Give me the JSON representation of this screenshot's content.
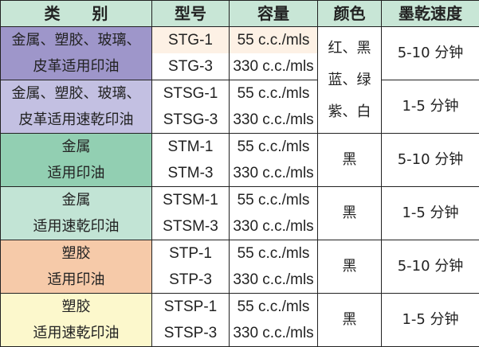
{
  "headers": [
    "类　　别",
    "型号",
    "容量",
    "颜色",
    "墨乾速度"
  ],
  "groups": [
    {
      "cat1": "金属、塑胶、玻璃、",
      "cat2": "皮革适用印油",
      "m1": "STG-1",
      "m2": "STG-3",
      "c1": "55 c.c./mls",
      "c2": "330 c.c./mls",
      "speed": "5-10 分钟",
      "bg": "#9e96ca"
    },
    {
      "cat1": "金属、塑胶、玻璃、",
      "cat2": "皮革适用速乾印油",
      "m1": "STSG-1",
      "m2": "STSG-3",
      "c1": "55 c.c./mls",
      "c2": "330 c.c./mls",
      "speed": "1-5 分钟",
      "bg": "#c3c0e2"
    },
    {
      "cat1": "金属",
      "cat2": "适用印油",
      "m1": "STM-1",
      "m2": "STM-3",
      "c1": "55 c.c./mls",
      "c2": "330 c.c./mls",
      "color": "黑",
      "speed": "5-10 分钟",
      "bg": "#92cfb2"
    },
    {
      "cat1": "金属",
      "cat2": "适用速乾印油",
      "m1": "STSM-1",
      "m2": "STSM-3",
      "c1": "55 c.c./mls",
      "c2": "330 c.c./mls",
      "color": "黑",
      "speed": "1-5 分钟",
      "bg": "#c2e4d5"
    },
    {
      "cat1": "塑胶",
      "cat2": "适用印油",
      "m1": "STP-1",
      "m2": "STP-3",
      "c1": "55 c.c./mls",
      "c2": "330 c.c./mls",
      "color": "黑",
      "speed": "5-10 分钟",
      "bg": "#f6caa9"
    },
    {
      "cat1": "塑胶",
      "cat2": "适用速乾印油",
      "m1": "STSP-1",
      "m2": "STSP-3",
      "c1": "55 c.c./mls",
      "c2": "330 c.c./mls",
      "color": "黑",
      "speed": "1-5 分钟",
      "bg": "#fcf8cc"
    }
  ],
  "shared_colors": [
    "红、黑",
    "蓝、绿",
    "紫、白"
  ]
}
